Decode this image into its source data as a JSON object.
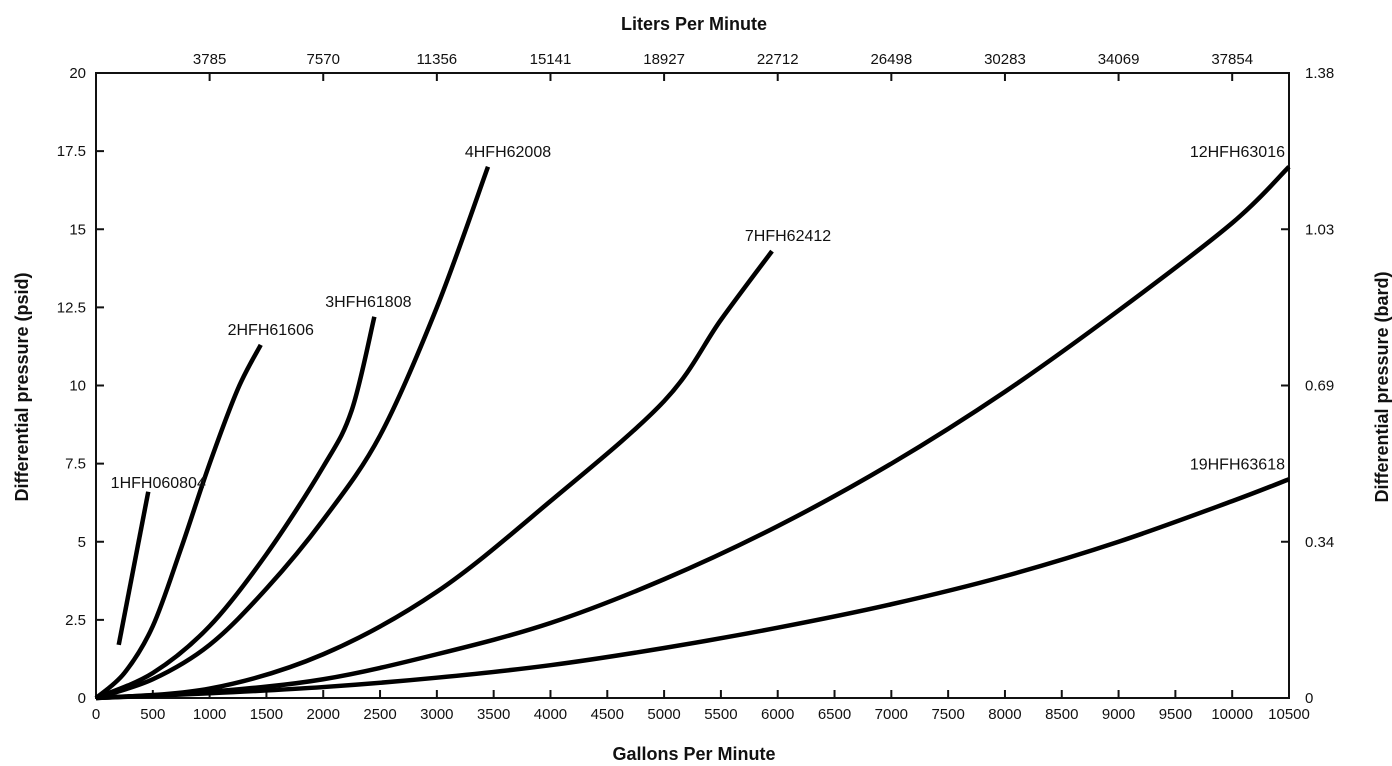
{
  "chart_data": {
    "type": "line",
    "xlabel": "Gallons Per Minute",
    "ylabel": "Differential pressure (psid)",
    "x2label": "Liters Per Minute",
    "y2label": "Differential pressure (bard)",
    "xlim": [
      0,
      10500
    ],
    "ylim": [
      0,
      20
    ],
    "x_ticks": [
      "0",
      "500",
      "1000",
      "1500",
      "2000",
      "2500",
      "3000",
      "3500",
      "4000",
      "4500",
      "5000",
      "5500",
      "6000",
      "6500",
      "7000",
      "7500",
      "8000",
      "8500",
      "9000",
      "9500",
      "10000",
      "10500"
    ],
    "y_ticks": [
      "0",
      "2.5",
      "5",
      "7.5",
      "10",
      "12.5",
      "15",
      "17.5",
      "20"
    ],
    "x2_ticks": [
      {
        "gpm": 1000,
        "label": "3785"
      },
      {
        "gpm": 2000,
        "label": "7570"
      },
      {
        "gpm": 3000,
        "label": "11356"
      },
      {
        "gpm": 4000,
        "label": "15141"
      },
      {
        "gpm": 5000,
        "label": "18927"
      },
      {
        "gpm": 6000,
        "label": "22712"
      },
      {
        "gpm": 7000,
        "label": "26498"
      },
      {
        "gpm": 8000,
        "label": "30283"
      },
      {
        "gpm": 9000,
        "label": "34069"
      },
      {
        "gpm": 10000,
        "label": "37854"
      }
    ],
    "y2_ticks": [
      {
        "psid": 0,
        "label": "0"
      },
      {
        "psid": 5,
        "label": "0.34"
      },
      {
        "psid": 10,
        "label": "0.69"
      },
      {
        "psid": 15,
        "label": "1.03"
      },
      {
        "psid": 20,
        "label": "1.38"
      }
    ],
    "grid": false,
    "legend": "none",
    "series": [
      {
        "name": "1HFH060804",
        "x": [
          200,
          460
        ],
        "y": [
          1.7,
          6.6
        ]
      },
      {
        "name": "2HFH61606",
        "x": [
          0,
          250,
          500,
          750,
          1000,
          1250,
          1450
        ],
        "y": [
          0,
          0.8,
          2.3,
          4.8,
          7.5,
          9.9,
          11.3
        ]
      },
      {
        "name": "3HFH61808",
        "x": [
          0,
          500,
          1000,
          1500,
          2000,
          2250,
          2450
        ],
        "y": [
          0,
          0.8,
          2.3,
          4.6,
          7.4,
          9.2,
          12.2
        ]
      },
      {
        "name": "4HFH62008",
        "x": [
          0,
          500,
          1000,
          1500,
          2000,
          2500,
          3000,
          3450
        ],
        "y": [
          0,
          0.6,
          1.7,
          3.5,
          5.7,
          8.4,
          12.5,
          17.0
        ]
      },
      {
        "name": "7HFH62412",
        "x": [
          0,
          1000,
          2000,
          3000,
          4000,
          5000,
          5500,
          5950
        ],
        "y": [
          0,
          0.3,
          1.4,
          3.4,
          6.3,
          9.5,
          12.1,
          14.3
        ]
      },
      {
        "name": "12HFH63016",
        "x": [
          0,
          1000,
          2000,
          3000,
          4000,
          5000,
          6000,
          7000,
          8000,
          9000,
          10000,
          10500
        ],
        "y": [
          0,
          0.2,
          0.6,
          1.4,
          2.4,
          3.8,
          5.5,
          7.5,
          9.8,
          12.4,
          15.2,
          17.0
        ]
      },
      {
        "name": "19HFH63618",
        "x": [
          0,
          1000,
          2000,
          3000,
          4000,
          5000,
          6000,
          7000,
          8000,
          9000,
          10000,
          10500
        ],
        "y": [
          0,
          0.15,
          0.35,
          0.65,
          1.05,
          1.6,
          2.25,
          3.0,
          3.9,
          5.0,
          6.3,
          7.0
        ]
      }
    ]
  }
}
